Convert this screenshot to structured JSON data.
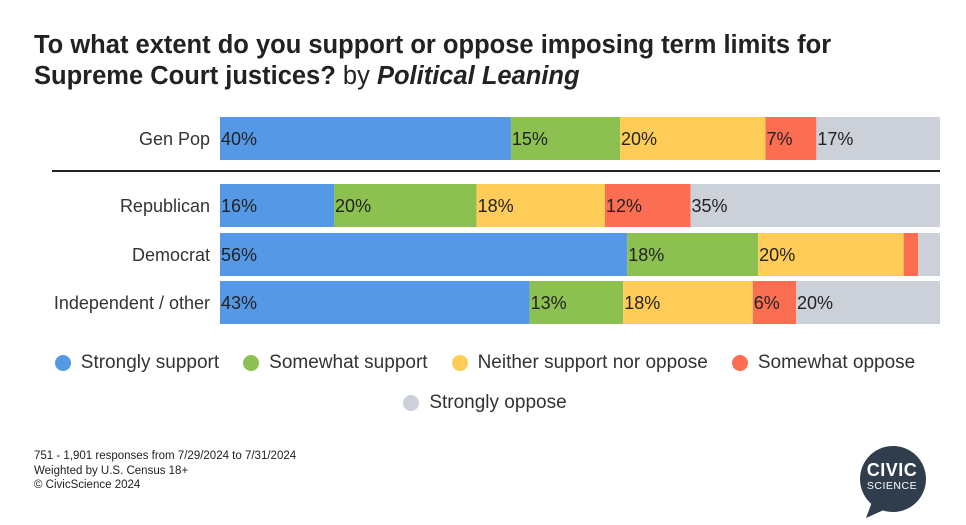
{
  "title": {
    "question": "To what extent do you support or oppose imposing term limits for Supreme Court justices?",
    "by": "by",
    "leaning": "Political Leaning"
  },
  "chart_data": {
    "type": "bar",
    "orientation": "horizontal",
    "stacked": true,
    "percent": true,
    "categories": [
      "Gen Pop",
      "Republican",
      "Democrat",
      "Independent / other"
    ],
    "series": [
      {
        "name": "Strongly support",
        "color": "#5599e6",
        "values": [
          40,
          16,
          56,
          43
        ],
        "labels": [
          "40%",
          "16%",
          "56%",
          "43%"
        ]
      },
      {
        "name": "Somewhat support",
        "color": "#8cc152",
        "values": [
          15,
          20,
          18,
          13
        ],
        "labels": [
          "15%",
          "20%",
          "18%",
          "13%"
        ]
      },
      {
        "name": "Neither support nor oppose",
        "color": "#ffcd57",
        "values": [
          20,
          18,
          20,
          18
        ],
        "labels": [
          "20%",
          "18%",
          "20%",
          "18%"
        ]
      },
      {
        "name": "Somewhat oppose",
        "color": "#fb6e52",
        "values": [
          7,
          12,
          2,
          6
        ],
        "labels": [
          "7%",
          "12%",
          "",
          "6%"
        ]
      },
      {
        "name": "Strongly oppose",
        "color": "#ccd0d9",
        "values": [
          17,
          35,
          3,
          20
        ],
        "labels": [
          "17%",
          "35%",
          "",
          "20%"
        ]
      }
    ],
    "legend_position": "bottom",
    "grid": false
  },
  "footnote": [
    "751 - 1,901 responses from 7/29/2024 to 7/31/2024",
    "Weighted by U.S. Census 18+",
    "© CivicScience 2024"
  ],
  "logo": {
    "line1": "CIVIC",
    "line2": "SCIENCE",
    "color": "#2f3d4c"
  }
}
